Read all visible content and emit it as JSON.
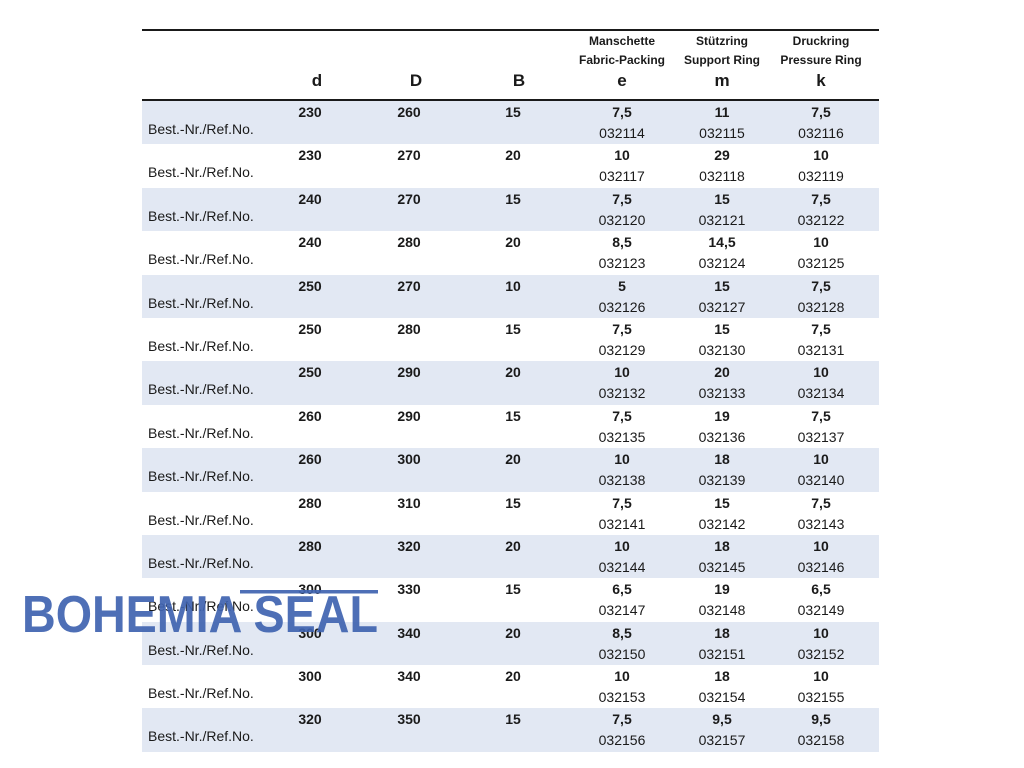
{
  "header": {
    "e_caption": [
      "Manschette",
      "Fabric-Packing"
    ],
    "m_caption": [
      "Stützring",
      "Support Ring"
    ],
    "k_caption": [
      "Druckring",
      "Pressure Ring"
    ],
    "columns": [
      "d",
      "D",
      "B",
      "e",
      "m",
      "k"
    ]
  },
  "ref_label": "Best.-Nr./Ref.No.",
  "rows": [
    {
      "d": "230",
      "D": "260",
      "B": "15",
      "e": "7,5",
      "m": "11",
      "k": "7,5",
      "e_ref": "032114",
      "m_ref": "032115",
      "k_ref": "032116"
    },
    {
      "d": "230",
      "D": "270",
      "B": "20",
      "e": "10",
      "m": "29",
      "k": "10",
      "e_ref": "032117",
      "m_ref": "032118",
      "k_ref": "032119"
    },
    {
      "d": "240",
      "D": "270",
      "B": "15",
      "e": "7,5",
      "m": "15",
      "k": "7,5",
      "e_ref": "032120",
      "m_ref": "032121",
      "k_ref": "032122"
    },
    {
      "d": "240",
      "D": "280",
      "B": "20",
      "e": "8,5",
      "m": "14,5",
      "k": "10",
      "e_ref": "032123",
      "m_ref": "032124",
      "k_ref": "032125"
    },
    {
      "d": "250",
      "D": "270",
      "B": "10",
      "e": "5",
      "m": "15",
      "k": "7,5",
      "e_ref": "032126",
      "m_ref": "032127",
      "k_ref": "032128"
    },
    {
      "d": "250",
      "D": "280",
      "B": "15",
      "e": "7,5",
      "m": "15",
      "k": "7,5",
      "e_ref": "032129",
      "m_ref": "032130",
      "k_ref": "032131"
    },
    {
      "d": "250",
      "D": "290",
      "B": "20",
      "e": "10",
      "m": "20",
      "k": "10",
      "e_ref": "032132",
      "m_ref": "032133",
      "k_ref": "032134"
    },
    {
      "d": "260",
      "D": "290",
      "B": "15",
      "e": "7,5",
      "m": "19",
      "k": "7,5",
      "e_ref": "032135",
      "m_ref": "032136",
      "k_ref": "032137"
    },
    {
      "d": "260",
      "D": "300",
      "B": "20",
      "e": "10",
      "m": "18",
      "k": "10",
      "e_ref": "032138",
      "m_ref": "032139",
      "k_ref": "032140"
    },
    {
      "d": "280",
      "D": "310",
      "B": "15",
      "e": "7,5",
      "m": "15",
      "k": "7,5",
      "e_ref": "032141",
      "m_ref": "032142",
      "k_ref": "032143"
    },
    {
      "d": "280",
      "D": "320",
      "B": "20",
      "e": "10",
      "m": "18",
      "k": "10",
      "e_ref": "032144",
      "m_ref": "032145",
      "k_ref": "032146"
    },
    {
      "d": "300",
      "D": "330",
      "B": "15",
      "e": "6,5",
      "m": "19",
      "k": "6,5",
      "e_ref": "032147",
      "m_ref": "032148",
      "k_ref": "032149"
    },
    {
      "d": "300",
      "D": "340",
      "B": "20",
      "e": "8,5",
      "m": "18",
      "k": "10",
      "e_ref": "032150",
      "m_ref": "032151",
      "k_ref": "032152"
    },
    {
      "d": "300",
      "D": "340",
      "B": "20",
      "e": "10",
      "m": "18",
      "k": "10",
      "e_ref": "032153",
      "m_ref": "032154",
      "k_ref": "032155"
    },
    {
      "d": "320",
      "D": "350",
      "B": "15",
      "e": "7,5",
      "m": "9,5",
      "k": "9,5",
      "e_ref": "032156",
      "m_ref": "032157",
      "k_ref": "032158"
    }
  ],
  "watermark": {
    "text": "BOHEMIA SEAL",
    "color": "#3f63b0"
  },
  "colors": {
    "row_shade": "#e2e8f3",
    "rule": "#1a1a1a"
  }
}
